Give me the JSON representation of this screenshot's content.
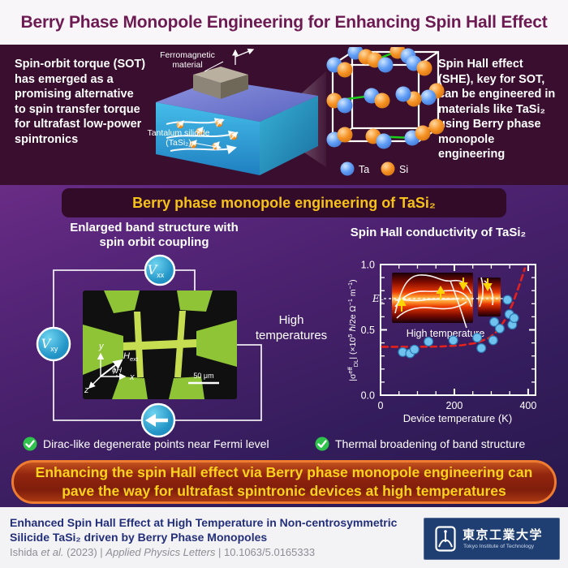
{
  "header": {
    "title": "Berry Phase Monopole Engineering for Enhancing Spin Hall Effect"
  },
  "top": {
    "left_text": "Spin-orbit torque (SOT) has emerged as a promising alternative to spin transfer torque for ultrafast low-power spintronics",
    "right_text": "Spin Hall effect (SHE), key for SOT, can be engineered in materials like TaSi₂ using Berry phase monopole engineering",
    "labels": {
      "ferromagnetic": "Ferromagnetic material",
      "tantalum": "Tantalum silicide (TaSi₂)"
    },
    "legend": {
      "ta": "Ta",
      "si": "Si"
    }
  },
  "banner": {
    "text": "Berry phase monopole engineering of TaSi₂"
  },
  "left_panel": {
    "title_line1": "Enlarged band structure with",
    "title_line2": "spin orbit coupling",
    "vxx": {
      "base": "V",
      "sub": "xx"
    },
    "vxy": {
      "base": "V",
      "sub": "xy"
    },
    "axes": {
      "x": "x",
      "y": "y",
      "z": "z",
      "h_base": "H",
      "h_sub": "ext",
      "phi": "ϕH"
    },
    "scale_bar": "50 μm"
  },
  "middle": {
    "high_temp": "High temperatures"
  },
  "right_panel": {
    "title": "Spin Hall conductivity of TaSi₂"
  },
  "chart_data": {
    "type": "scatter",
    "title": "Spin Hall conductivity of TaSi₂",
    "xlabel": "Device temperature (K)",
    "ylabel": "|σ^eff_DL| (×10⁵ ℏ/2e Ω⁻¹ m⁻¹)",
    "ylabel_parts": {
      "a": "|σ",
      "b": "eff",
      "c": "DL",
      "d": "| (×10",
      "e": "5",
      "f": " ℏ/2e Ω",
      "g": "−1",
      "h": " m",
      "i": "−1",
      "j": ")"
    },
    "xlim": [
      0,
      420
    ],
    "ylim": [
      0.0,
      1.0
    ],
    "xticks": [
      0,
      200,
      400
    ],
    "xtick_minor_step": 50,
    "yticks": [
      "0.0",
      "0.5",
      "1.0"
    ],
    "ytick_minor_step": 0.1,
    "grid": false,
    "legend_position": "none",
    "series": [
      {
        "name": "measured spin Hall conductivity",
        "type": "scatter",
        "color": "#6fc2ee",
        "points": [
          [
            60,
            0.33
          ],
          [
            80,
            0.32
          ],
          [
            92,
            0.35
          ],
          [
            130,
            0.41
          ],
          [
            197,
            0.42
          ],
          [
            262,
            0.44
          ],
          [
            273,
            0.36
          ],
          [
            305,
            0.42
          ],
          [
            308,
            0.56
          ],
          [
            323,
            0.51
          ],
          [
            344,
            0.73
          ],
          [
            349,
            0.62
          ],
          [
            357,
            0.54
          ],
          [
            362,
            0.59
          ]
        ]
      },
      {
        "name": "fit",
        "type": "line-dashed",
        "color": "#e62119",
        "points": [
          [
            4,
            0.37
          ],
          [
            80,
            0.37
          ],
          [
            160,
            0.372
          ],
          [
            220,
            0.382
          ],
          [
            260,
            0.4
          ],
          [
            295,
            0.44
          ],
          [
            320,
            0.5
          ],
          [
            340,
            0.59
          ],
          [
            358,
            0.7
          ],
          [
            372,
            0.81
          ],
          [
            383,
            0.9
          ],
          [
            391,
            0.97
          ]
        ]
      }
    ],
    "inset": {
      "ef_base": "E",
      "ef_sub": "F",
      "label": "High temperature"
    }
  },
  "checklist": {
    "items": [
      "Dirac-like degenerate points near Fermi level",
      "Thermal broadening of band structure"
    ]
  },
  "conclusion": {
    "line1": "Enhancing the spin Hall effect via Berry phase monopole engineering can",
    "line2": "pave the way for ultrafast spintronic devices at high temperatures"
  },
  "footer": {
    "title_line1": "Enhanced Spin Hall Effect at High Temperature in Non-centrosymmetric",
    "title_line2": "Silicide TaSi₂ driven by Berry Phase Monopoles",
    "citation": {
      "p1": "Ishida ",
      "p2": "et al.",
      "p3": " (2023) | ",
      "p4": "Applied Physics Letters",
      "p5": " | 10.1063/5.0165333"
    },
    "logo": {
      "jp": "東京工業大学",
      "en": "Tokyo Institute of Technology"
    }
  },
  "colors": {
    "title_maroon": "#6d1a52",
    "banner_yellow": "#f6c21a",
    "conclusion_border_orange": "#ef7b30",
    "check_green": "#2fc24c",
    "scatter_blue": "#6fc2ee",
    "fit_red": "#e62119",
    "ta_ball_blue": "#5e9cf5",
    "si_ball_orange": "#f59021",
    "probe_teal": "#2496c8"
  }
}
